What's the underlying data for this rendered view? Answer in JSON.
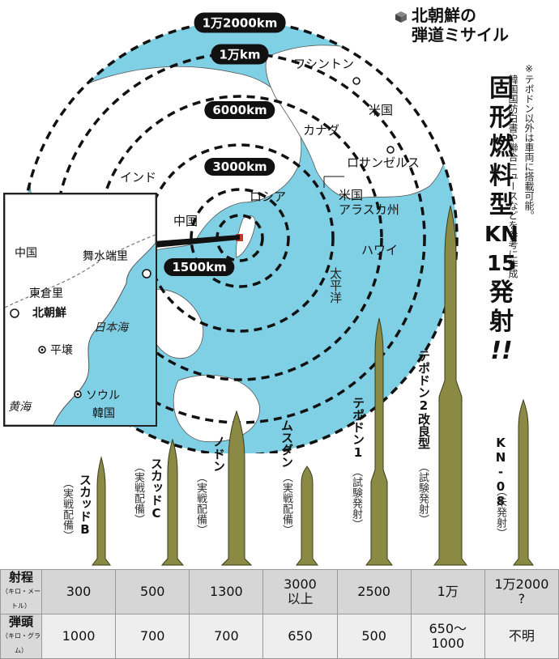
{
  "title": {
    "line1": "北朝鮮の",
    "line2": "弾道ミサイル"
  },
  "notes": {
    "line1": "※テポドン以外は車両に搭載可能。",
    "line2": "韓国国防白書や聯合ニュースなどを参考に作成"
  },
  "headline": [
    "固",
    "形",
    "燃",
    "料",
    "型",
    "KN",
    "15",
    "発",
    "射",
    "!!"
  ],
  "range_rings": [
    "1万2000km",
    "1万km",
    "6000km",
    "3000km",
    "1500km"
  ],
  "map_labels": {
    "washington": "ワシントン",
    "usa": "米国",
    "canada": "カナダ",
    "los_angeles": "ロサンゼルス",
    "india": "インド",
    "russia": "ロシア",
    "alaska": "米国\nアラスカ州",
    "china": "中国",
    "hawaii": "ハワイ",
    "pacific": "太平洋"
  },
  "inset": {
    "china": "中国",
    "musudan_ri": "舞水端里",
    "tongchang_ri": "東倉里",
    "north_korea": "北朝鮮",
    "sea_of_japan": "日本海",
    "pyongyang": "平壌",
    "seoul": "ソウル",
    "south_korea": "韓国",
    "yellow_sea": "黄海"
  },
  "missiles": [
    {
      "name": "スカッドB",
      "status": "（実戦配備）"
    },
    {
      "name": "スカッドC",
      "status": "（実戦配備）"
    },
    {
      "name": "ノドン",
      "status": "（実戦配備）"
    },
    {
      "name": "ムスダン",
      "status": "（実戦配備）"
    },
    {
      "name": "テポドン1",
      "status": "（試験発射）"
    },
    {
      "name": "テポドン2改良型",
      "status": "（試験発射）"
    },
    {
      "name": "KN-08",
      "status": "（未発射）"
    }
  ],
  "table": {
    "range_head": "射程",
    "range_unit": "（キロ・メートル）",
    "warhead_head": "弾頭",
    "warhead_unit": "（キロ・グラム）",
    "range_values": [
      "300",
      "500",
      "1300",
      "3000\n以上",
      "2500",
      "1万",
      "1万2000\n?"
    ],
    "warhead_values": [
      "1000",
      "700",
      "700",
      "650",
      "500",
      "650〜\n1000",
      "不明"
    ]
  },
  "colors": {
    "ocean": "#7fd0e4",
    "land": "#ffffff",
    "missile": "#8a8a45",
    "ring": "#111111"
  }
}
